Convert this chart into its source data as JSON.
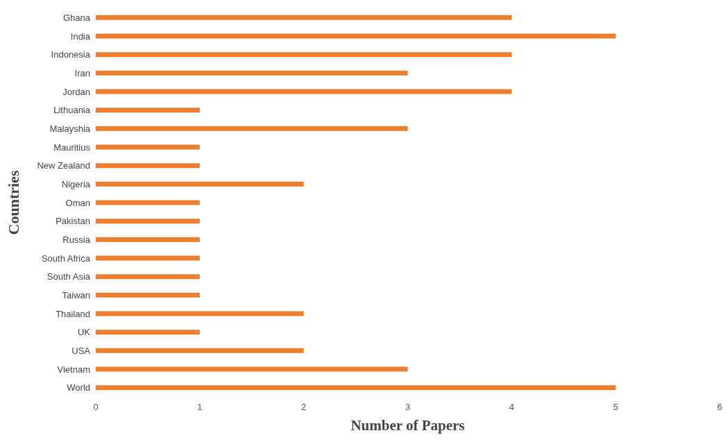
{
  "chart_data": {
    "type": "bar",
    "orientation": "horizontal",
    "xlabel": "Number of Papers",
    "ylabel": "Countries",
    "categories": [
      "Ghana",
      "India",
      "Indonesia",
      "Iran",
      "Jordan",
      "Lithuania",
      "Malayshia",
      "Mauritius",
      "New Zealand",
      "Nigeria",
      "Oman",
      "Pakistan",
      "Russia",
      "South Africa",
      "South Asia",
      "Taiwan",
      "Thailand",
      "UK",
      "USA",
      "Vietnam",
      "World"
    ],
    "values": [
      4,
      5,
      4,
      3,
      4,
      1,
      3,
      1,
      1,
      2,
      1,
      1,
      1,
      1,
      1,
      1,
      2,
      1,
      2,
      3,
      5
    ],
    "color": "#ed7d31",
    "xlim": [
      0,
      6
    ],
    "xticks": [
      0,
      1,
      2,
      3,
      4,
      5,
      6
    ]
  }
}
